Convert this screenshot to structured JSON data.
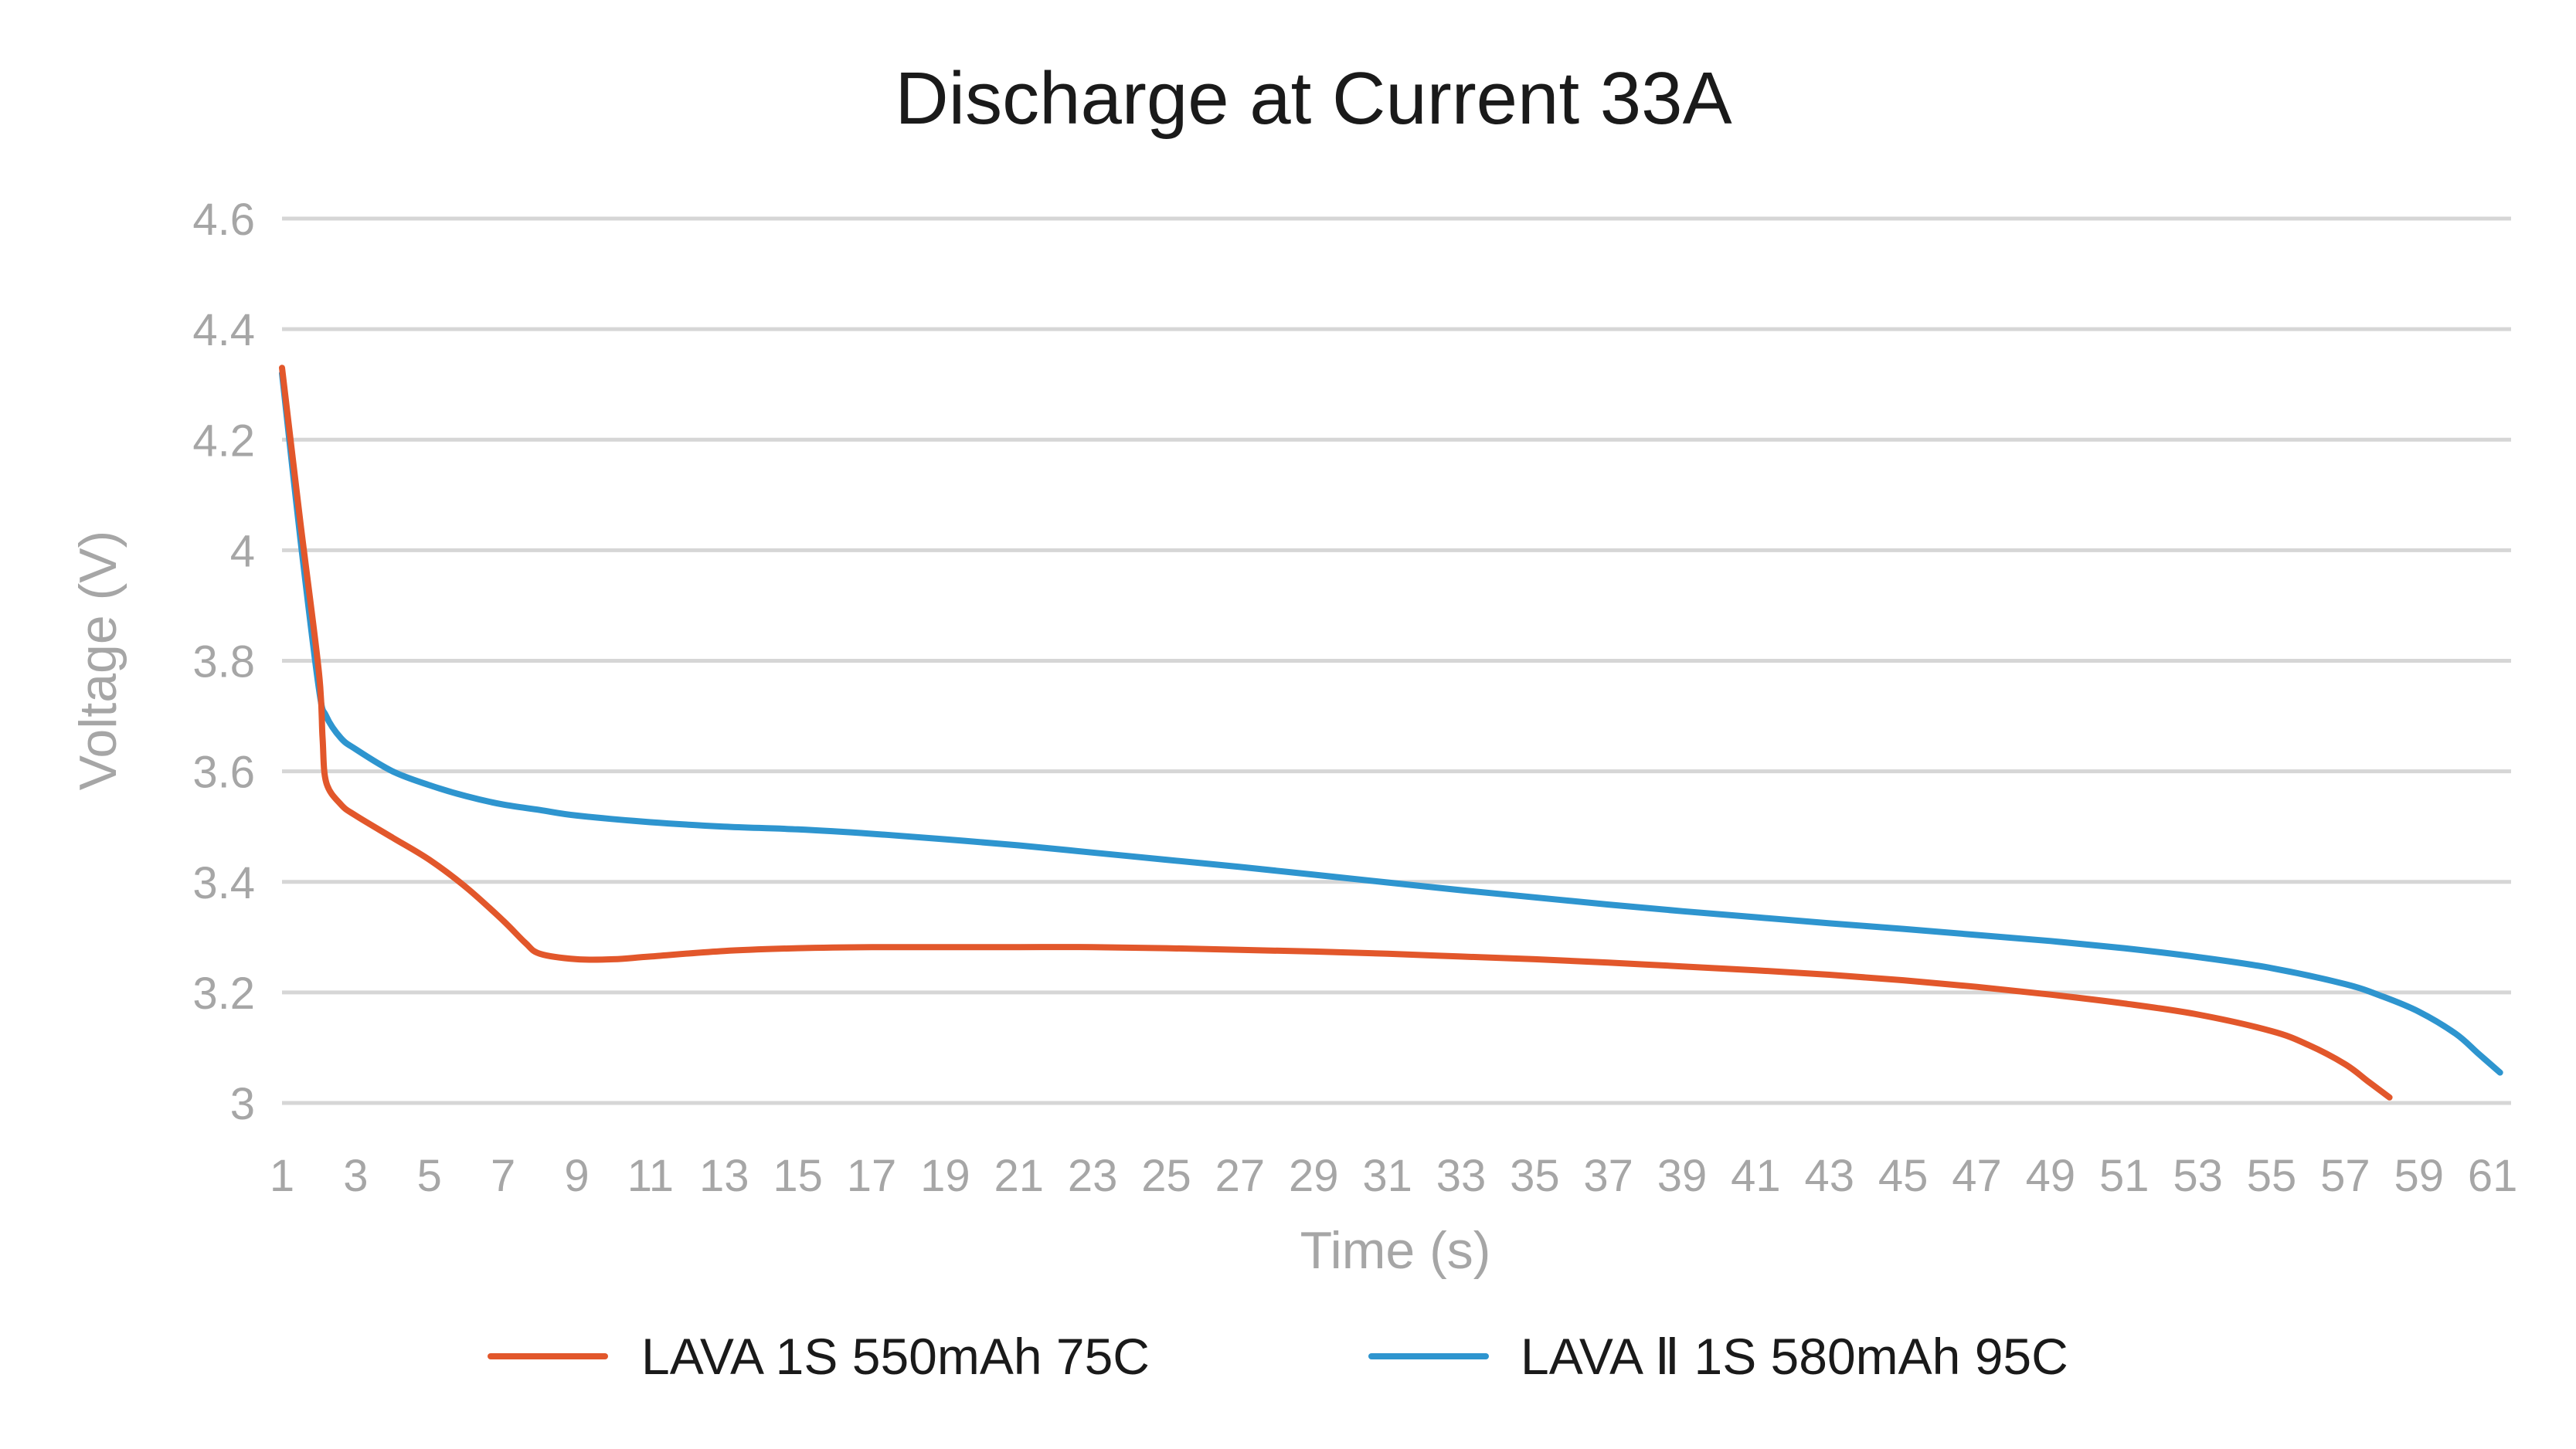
{
  "chart_data": {
    "type": "line",
    "title": "Discharge at Current 33A",
    "xlabel": "Time (s)",
    "ylabel": "Voltage (V)",
    "xlim": [
      1,
      61.5
    ],
    "ylim": [
      3,
      4.6
    ],
    "x_ticks": [
      "1",
      "3",
      "5",
      "7",
      "9",
      "11",
      "13",
      "15",
      "17",
      "19",
      "21",
      "23",
      "25",
      "27",
      "29",
      "31",
      "33",
      "35",
      "37",
      "39",
      "41",
      "43",
      "45",
      "47",
      "49",
      "51",
      "53",
      "55",
      "57",
      "59",
      "61"
    ],
    "y_ticks": [
      "3",
      "3.2",
      "3.4",
      "3.6",
      "3.8",
      "4",
      "4.2",
      "4.4",
      "4.6"
    ],
    "grid": true,
    "legend_position": "bottom",
    "series": [
      {
        "name": "LAVA 1S 550mAh 75C",
        "color": "#e2572b",
        "points": [
          [
            1,
            4.33
          ],
          [
            1.5,
            4.05
          ],
          [
            2,
            3.78
          ],
          [
            2.1,
            3.66
          ],
          [
            2.2,
            3.58
          ],
          [
            2.6,
            3.54
          ],
          [
            3,
            3.52
          ],
          [
            4,
            3.48
          ],
          [
            5,
            3.44
          ],
          [
            6,
            3.39
          ],
          [
            7,
            3.33
          ],
          [
            7.6,
            3.29
          ],
          [
            8,
            3.27
          ],
          [
            9,
            3.26
          ],
          [
            10,
            3.26
          ],
          [
            11,
            3.265
          ],
          [
            13,
            3.275
          ],
          [
            15,
            3.28
          ],
          [
            17,
            3.282
          ],
          [
            19,
            3.282
          ],
          [
            21,
            3.282
          ],
          [
            23,
            3.282
          ],
          [
            25,
            3.28
          ],
          [
            27,
            3.277
          ],
          [
            29,
            3.274
          ],
          [
            31,
            3.27
          ],
          [
            33,
            3.265
          ],
          [
            35,
            3.26
          ],
          [
            37,
            3.254
          ],
          [
            39,
            3.247
          ],
          [
            41,
            3.24
          ],
          [
            43,
            3.232
          ],
          [
            45,
            3.222
          ],
          [
            47,
            3.21
          ],
          [
            49,
            3.196
          ],
          [
            51,
            3.18
          ],
          [
            53,
            3.16
          ],
          [
            55,
            3.13
          ],
          [
            56,
            3.105
          ],
          [
            57,
            3.07
          ],
          [
            57.6,
            3.04
          ],
          [
            58.2,
            3.01
          ]
        ]
      },
      {
        "name": "LAVA Ⅱ 1S 580mAh 95C",
        "color": "#2e95cf",
        "points": [
          [
            1,
            4.32
          ],
          [
            1.5,
            4.02
          ],
          [
            2,
            3.75
          ],
          [
            2.2,
            3.7
          ],
          [
            2.6,
            3.66
          ],
          [
            3,
            3.64
          ],
          [
            4,
            3.6
          ],
          [
            5,
            3.575
          ],
          [
            6,
            3.555
          ],
          [
            7,
            3.54
          ],
          [
            8,
            3.53
          ],
          [
            9,
            3.52
          ],
          [
            11,
            3.508
          ],
          [
            13,
            3.5
          ],
          [
            15,
            3.495
          ],
          [
            17,
            3.487
          ],
          [
            19,
            3.477
          ],
          [
            21,
            3.466
          ],
          [
            23,
            3.453
          ],
          [
            25,
            3.44
          ],
          [
            27,
            3.427
          ],
          [
            29,
            3.413
          ],
          [
            31,
            3.399
          ],
          [
            33,
            3.385
          ],
          [
            35,
            3.372
          ],
          [
            37,
            3.359
          ],
          [
            39,
            3.347
          ],
          [
            41,
            3.336
          ],
          [
            43,
            3.325
          ],
          [
            45,
            3.315
          ],
          [
            47,
            3.304
          ],
          [
            49,
            3.293
          ],
          [
            51,
            3.28
          ],
          [
            53,
            3.264
          ],
          [
            55,
            3.244
          ],
          [
            57,
            3.215
          ],
          [
            58,
            3.193
          ],
          [
            59,
            3.165
          ],
          [
            60,
            3.125
          ],
          [
            60.6,
            3.09
          ],
          [
            61.2,
            3.055
          ]
        ]
      }
    ]
  }
}
